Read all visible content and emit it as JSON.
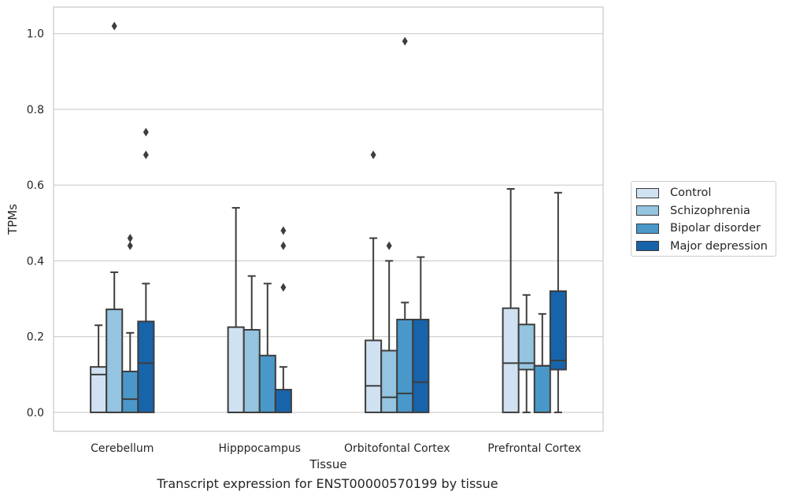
{
  "chart_data": {
    "type": "box",
    "xlabel": "Tissue",
    "ylabel": "TPMs",
    "caption": "Transcript expression for ENST00000570199 by tissue",
    "ylim": [
      -0.05,
      1.07
    ],
    "yticks": [
      "0.0",
      "0.2",
      "0.4",
      "0.6",
      "0.8",
      "1.0"
    ],
    "grid": "horizontal",
    "legend_position": "right",
    "categories": [
      "Cerebellum",
      "Hipppocampus",
      "Orbitofontal Cortex",
      "Prefrontal Cortex"
    ],
    "series": [
      {
        "name": "Control",
        "color": "#d0e1f2",
        "boxes": [
          {
            "whisker_low": 0,
            "q1": 0,
            "median": 0.1,
            "q3": 0.12,
            "whisker_high": 0.23,
            "outliers": []
          },
          {
            "whisker_low": 0,
            "q1": 0,
            "median": 0.0,
            "q3": 0.225,
            "whisker_high": 0.54,
            "outliers": []
          },
          {
            "whisker_low": 0,
            "q1": 0,
            "median": 0.07,
            "q3": 0.19,
            "whisker_high": 0.46,
            "outliers": [
              0.68
            ]
          },
          {
            "whisker_low": 0,
            "q1": 0,
            "median": 0.13,
            "q3": 0.275,
            "whisker_high": 0.59,
            "outliers": []
          }
        ]
      },
      {
        "name": "Schizophrenia",
        "color": "#94c4df",
        "boxes": [
          {
            "whisker_low": 0,
            "q1": 0,
            "median": 0.0,
            "q3": 0.272,
            "whisker_high": 0.37,
            "outliers": [
              1.02
            ]
          },
          {
            "whisker_low": 0,
            "q1": 0,
            "median": 0.0,
            "q3": 0.218,
            "whisker_high": 0.36,
            "outliers": []
          },
          {
            "whisker_low": 0,
            "q1": 0,
            "median": 0.04,
            "q3": 0.163,
            "whisker_high": 0.4,
            "outliers": [
              0.44
            ]
          },
          {
            "whisker_low": 0,
            "q1": 0.113,
            "median": 0.13,
            "q3": 0.232,
            "whisker_high": 0.31,
            "outliers": []
          }
        ]
      },
      {
        "name": "Bipolar disorder",
        "color": "#4a98c9",
        "boxes": [
          {
            "whisker_low": 0,
            "q1": 0,
            "median": 0.035,
            "q3": 0.108,
            "whisker_high": 0.21,
            "outliers": [
              0.44,
              0.46
            ]
          },
          {
            "whisker_low": 0,
            "q1": 0,
            "median": 0.0,
            "q3": 0.15,
            "whisker_high": 0.34,
            "outliers": []
          },
          {
            "whisker_low": 0,
            "q1": 0,
            "median": 0.05,
            "q3": 0.245,
            "whisker_high": 0.29,
            "outliers": [
              0.98
            ]
          },
          {
            "whisker_low": 0,
            "q1": 0,
            "median": 0.123,
            "q3": 0.123,
            "whisker_high": 0.26,
            "outliers": []
          }
        ]
      },
      {
        "name": "Major depression",
        "color": "#1764ab",
        "boxes": [
          {
            "whisker_low": 0,
            "q1": 0,
            "median": 0.13,
            "q3": 0.24,
            "whisker_high": 0.34,
            "outliers": [
              0.68,
              0.74
            ]
          },
          {
            "whisker_low": 0,
            "q1": 0,
            "median": 0.0,
            "q3": 0.06,
            "whisker_high": 0.12,
            "outliers": [
              0.33,
              0.44,
              0.48
            ]
          },
          {
            "whisker_low": 0,
            "q1": 0,
            "median": 0.08,
            "q3": 0.245,
            "whisker_high": 0.41,
            "outliers": []
          },
          {
            "whisker_low": 0,
            "q1": 0.113,
            "median": 0.137,
            "q3": 0.32,
            "whisker_high": 0.58,
            "outliers": []
          }
        ]
      }
    ]
  }
}
